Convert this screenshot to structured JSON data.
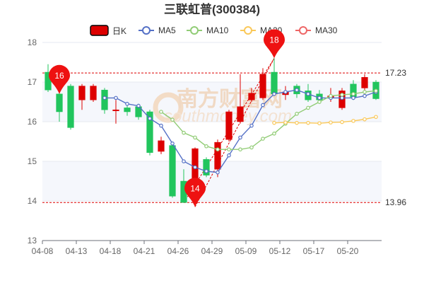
{
  "chart_data": {
    "type": "candlestick",
    "title": "三联虹普(300384)",
    "legend": [
      {
        "name": "日K",
        "color": "#dd0000"
      },
      {
        "name": "MA5",
        "color": "#5470c6"
      },
      {
        "name": "MA10",
        "color": "#91cc75"
      },
      {
        "name": "MA20",
        "color": "#fac858"
      },
      {
        "name": "MA30",
        "color": "#ee6666"
      }
    ],
    "ylim": [
      13,
      18
    ],
    "yticks": [
      "13",
      "14",
      "15",
      "16",
      "17",
      "18"
    ],
    "xtick_labels": [
      "04-08",
      "04-13",
      "04-18",
      "04-21",
      "04-26",
      "04-29",
      "05-09",
      "05-12",
      "05-17",
      "05-20"
    ],
    "xtick_index": [
      0,
      3,
      6,
      9,
      12,
      15,
      18,
      21,
      24,
      27
    ],
    "candles": [
      {
        "o": 17.25,
        "c": 16.8,
        "h": 17.45,
        "l": 16.75
      },
      {
        "o": 16.7,
        "c": 16.25,
        "h": 16.8,
        "l": 16.0
      },
      {
        "o": 16.9,
        "c": 15.85,
        "h": 16.95,
        "l": 15.8
      },
      {
        "o": 16.55,
        "c": 16.9,
        "h": 16.95,
        "l": 16.3
      },
      {
        "o": 16.55,
        "c": 16.9,
        "h": 16.95,
        "l": 16.5
      },
      {
        "o": 16.8,
        "c": 16.3,
        "h": 16.85,
        "l": 16.2
      },
      {
        "o": 16.28,
        "c": 16.3,
        "h": 16.55,
        "l": 15.95
      },
      {
        "o": 16.35,
        "c": 16.25,
        "h": 16.5,
        "l": 16.15
      },
      {
        "o": 16.38,
        "c": 16.12,
        "h": 16.45,
        "l": 16.05
      },
      {
        "o": 16.25,
        "c": 15.22,
        "h": 16.3,
        "l": 15.15
      },
      {
        "o": 15.25,
        "c": 15.52,
        "h": 15.62,
        "l": 15.18
      },
      {
        "o": 15.4,
        "c": 14.12,
        "h": 15.45,
        "l": 14.08
      },
      {
        "o": 14.5,
        "c": 13.96,
        "h": 14.8,
        "l": 13.95
      },
      {
        "o": 14.5,
        "c": 15.32,
        "h": 15.35,
        "l": 13.85
      },
      {
        "o": 15.05,
        "c": 14.65,
        "h": 15.1,
        "l": 14.6
      },
      {
        "o": 14.8,
        "c": 15.48,
        "h": 15.55,
        "l": 14.6
      },
      {
        "o": 15.55,
        "c": 16.25,
        "h": 16.3,
        "l": 15.5
      },
      {
        "o": 16.0,
        "c": 16.38,
        "h": 17.2,
        "l": 15.95
      },
      {
        "o": 16.55,
        "c": 16.72,
        "h": 16.85,
        "l": 16.5
      },
      {
        "o": 16.6,
        "c": 17.2,
        "h": 17.35,
        "l": 16.55
      },
      {
        "o": 17.25,
        "c": 16.7,
        "h": 17.6,
        "l": 16.65
      },
      {
        "o": 16.68,
        "c": 16.75,
        "h": 16.9,
        "l": 16.55
      },
      {
        "o": 16.9,
        "c": 16.7,
        "h": 16.95,
        "l": 16.6
      },
      {
        "o": 16.78,
        "c": 16.55,
        "h": 16.95,
        "l": 16.5
      },
      {
        "o": 16.7,
        "c": 16.55,
        "h": 16.8,
        "l": 16.45
      },
      {
        "o": 16.6,
        "c": 16.65,
        "h": 16.85,
        "l": 16.5
      },
      {
        "o": 16.35,
        "c": 16.78,
        "h": 16.85,
        "l": 16.3
      },
      {
        "o": 16.95,
        "c": 16.62,
        "h": 17.05,
        "l": 16.55
      },
      {
        "o": 16.85,
        "c": 17.12,
        "h": 17.2,
        "l": 16.65
      },
      {
        "o": 17.0,
        "c": 16.58,
        "h": 17.05,
        "l": 16.55
      }
    ],
    "ma5": [
      null,
      null,
      null,
      null,
      null,
      16.6,
      16.6,
      16.45,
      16.4,
      16.08,
      15.9,
      15.45,
      15.0,
      14.85,
      14.75,
      14.72,
      15.15,
      15.6,
      15.9,
      16.42,
      16.7,
      16.75,
      16.8,
      16.7,
      16.6,
      16.6,
      16.6,
      16.6,
      16.65,
      16.75
    ],
    "ma10": [
      null,
      null,
      null,
      null,
      null,
      null,
      null,
      null,
      null,
      null,
      16.25,
      16.05,
      15.72,
      15.6,
      15.38,
      15.3,
      15.3,
      15.3,
      15.35,
      15.57,
      15.7,
      15.95,
      16.2,
      16.35,
      16.5,
      16.65,
      16.68,
      16.7,
      16.75,
      16.78
    ],
    "ma20": [
      null,
      null,
      null,
      null,
      null,
      null,
      null,
      null,
      null,
      null,
      null,
      null,
      null,
      null,
      null,
      null,
      null,
      null,
      null,
      null,
      15.97,
      15.98,
      15.97,
      15.97,
      15.96,
      15.98,
      15.99,
      16.02,
      16.06,
      16.12
    ],
    "high_line": {
      "value": 17.23,
      "label": "17.23"
    },
    "low_line": {
      "value": 13.96,
      "label": "13.96"
    },
    "markers": [
      {
        "label": "16",
        "index": 1,
        "value": 16.7
      },
      {
        "label": "18",
        "index": 20,
        "value": 17.6
      },
      {
        "label": "14",
        "index": 13,
        "value": 13.85
      }
    ]
  },
  "watermark": {
    "cn": "南方财富网",
    "en": "southmoney.com"
  }
}
